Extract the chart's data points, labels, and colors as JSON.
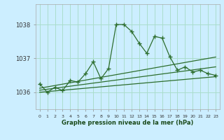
{
  "title": "Graphe pression niveau de la mer (hPa)",
  "background_color": "#cceeff",
  "grid_color": "#aaddcc",
  "line_color": "#2d6e2d",
  "x_labels": [
    "0",
    "1",
    "2",
    "3",
    "4",
    "5",
    "6",
    "7",
    "8",
    "9",
    "10",
    "11",
    "12",
    "13",
    "14",
    "15",
    "16",
    "17",
    "18",
    "19",
    "20",
    "21",
    "22",
    "23"
  ],
  "ylim": [
    1035.5,
    1038.6
  ],
  "yticks": [
    1036,
    1037,
    1038
  ],
  "main_series": [
    1036.25,
    1036.0,
    1036.15,
    1036.05,
    1036.35,
    1036.3,
    1036.55,
    1036.9,
    1036.4,
    1036.7,
    1038.0,
    1038.0,
    1037.8,
    1037.45,
    1037.15,
    1037.65,
    1037.6,
    1037.05,
    1036.65,
    1036.75,
    1036.6,
    1036.65,
    1036.55,
    1036.5
  ],
  "smooth1": [
    1036.0,
    1036.02,
    1036.04,
    1036.06,
    1036.08,
    1036.1,
    1036.12,
    1036.14,
    1036.16,
    1036.18,
    1036.2,
    1036.22,
    1036.24,
    1036.26,
    1036.28,
    1036.3,
    1036.32,
    1036.34,
    1036.36,
    1036.38,
    1036.4,
    1036.42,
    1036.44,
    1036.46
  ],
  "smooth2": [
    1036.06,
    1036.09,
    1036.12,
    1036.15,
    1036.18,
    1036.21,
    1036.24,
    1036.27,
    1036.3,
    1036.33,
    1036.36,
    1036.39,
    1036.42,
    1036.45,
    1036.48,
    1036.51,
    1036.54,
    1036.57,
    1036.6,
    1036.63,
    1036.66,
    1036.69,
    1036.72,
    1036.75
  ],
  "smooth3": [
    1036.12,
    1036.16,
    1036.2,
    1036.24,
    1036.28,
    1036.32,
    1036.36,
    1036.4,
    1036.44,
    1036.48,
    1036.52,
    1036.56,
    1036.6,
    1036.64,
    1036.68,
    1036.72,
    1036.76,
    1036.8,
    1036.84,
    1036.88,
    1036.92,
    1036.96,
    1037.0,
    1037.04
  ]
}
